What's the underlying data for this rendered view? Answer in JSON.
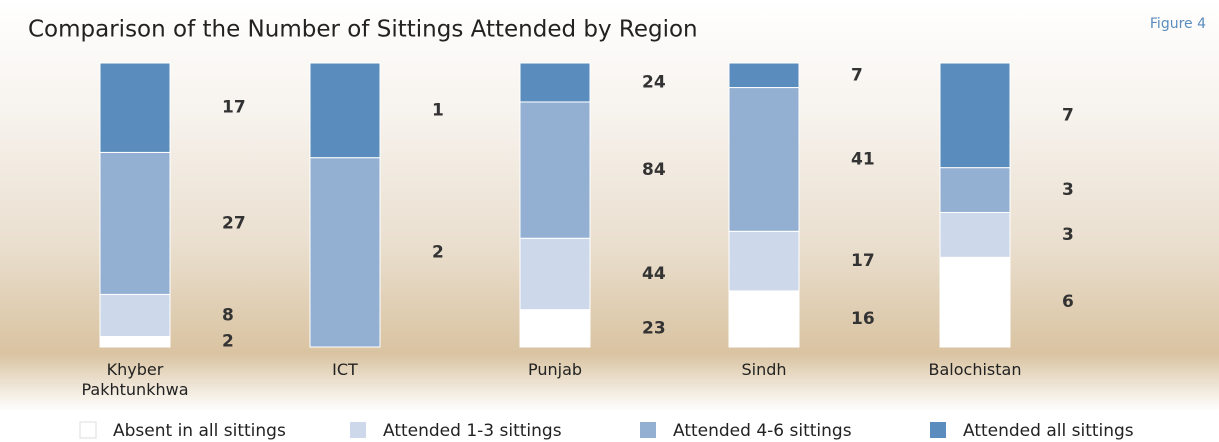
{
  "chart_data": {
    "type": "bar",
    "stacked": true,
    "title": "Comparison of the Number of Sittings Attended by Region",
    "figure_label": "Figure 4",
    "categories": [
      "Khyber Pakhtunkhwa",
      "ICT",
      "Punjab",
      "Sindh",
      "Balochistan"
    ],
    "series": [
      {
        "name": "Absent in all sittings",
        "color": "#ffffff",
        "values": [
          2,
          null,
          23,
          16,
          6
        ]
      },
      {
        "name": "Attended 1-3 sittings",
        "color": "#cdd8ea",
        "values": [
          8,
          null,
          44,
          17,
          3
        ]
      },
      {
        "name": "Attended 4-6 sittings",
        "color": "#93b0d3",
        "values": [
          27,
          2,
          84,
          41,
          3
        ]
      },
      {
        "name": "Attended all sittings",
        "color": "#5a8dbd",
        "values": [
          17,
          1,
          24,
          7,
          7
        ]
      }
    ]
  }
}
